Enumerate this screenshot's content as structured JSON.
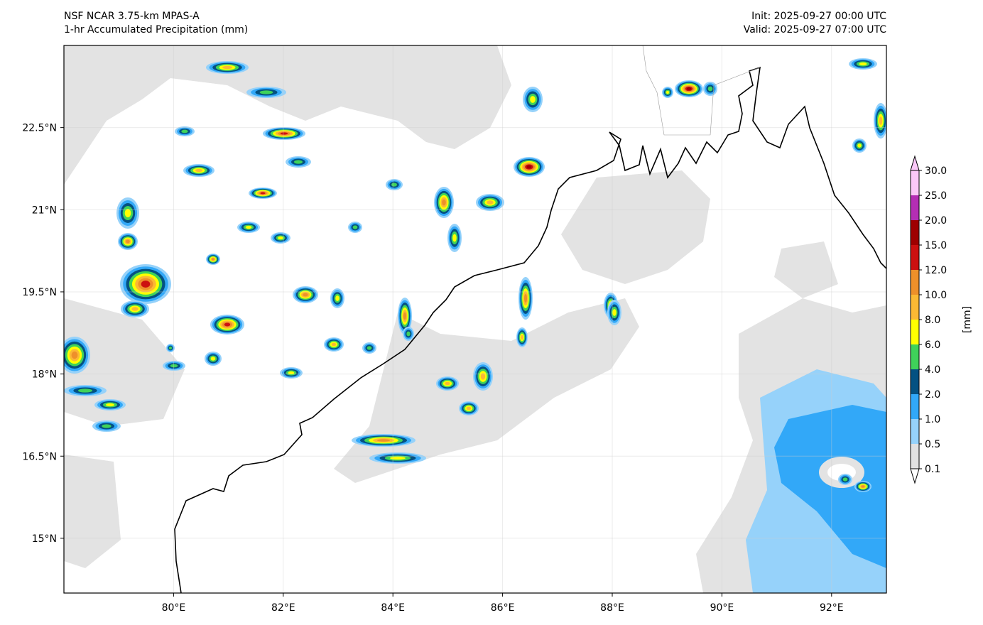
{
  "header": {
    "model": "NSF NCAR 3.75-km MPAS-A",
    "field": "1-hr Accumulated Precipitation (mm)",
    "init": "Init: 2025-09-27 00:00 UTC",
    "valid": "Valid: 2025-09-27 07:00 UTC"
  },
  "map": {
    "lon_range": [
      78,
      93
    ],
    "lat_range": [
      14,
      24
    ],
    "lon_ticks": [
      {
        "v": 80,
        "label": "80°E"
      },
      {
        "v": 82,
        "label": "82°E"
      },
      {
        "v": 84,
        "label": "84°E"
      },
      {
        "v": 86,
        "label": "86°E"
      },
      {
        "v": 88,
        "label": "88°E"
      },
      {
        "v": 90,
        "label": "90°E"
      },
      {
        "v": 92,
        "label": "92°E"
      }
    ],
    "lat_ticks": [
      {
        "v": 22.5,
        "label": "22.5°N"
      },
      {
        "v": 21,
        "label": "21°N"
      },
      {
        "v": 19.5,
        "label": "19.5°N"
      },
      {
        "v": 18,
        "label": "18°N"
      },
      {
        "v": 16.5,
        "label": "16.5°N"
      },
      {
        "v": 15,
        "label": "15°N"
      }
    ]
  },
  "colorbar": {
    "unit_label": "[mm]",
    "levels": [
      "0.1",
      "0.5",
      "1.0",
      "2.0",
      "4.0",
      "6.0",
      "8.0",
      "10.0",
      "12.0",
      "15.0",
      "20.0",
      "25.0",
      "30.0"
    ],
    "colors": [
      "#e1e1e1",
      "#96d2fa",
      "#32a8f8",
      "#045182",
      "#3fd25a",
      "#ffff00",
      "#fbb934",
      "#ee902a",
      "#cc1010",
      "#9e0000",
      "#b42eb4",
      "#fac8f8"
    ],
    "over_color": "#fac8f8",
    "under_color": "#ffffff"
  }
}
